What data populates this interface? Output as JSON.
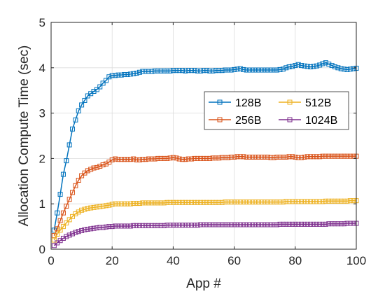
{
  "chart_data": {
    "type": "line",
    "title": "",
    "xlabel": "App #",
    "ylabel": "Allocation Compute Time (sec)",
    "xlim": [
      0,
      100
    ],
    "ylim": [
      0,
      5
    ],
    "x_ticks": [
      0,
      20,
      40,
      60,
      80,
      100
    ],
    "y_ticks": [
      0,
      1,
      2,
      3,
      4,
      5
    ],
    "grid": true,
    "legend_placement": "right",
    "legend_columns": 2,
    "marker": "square",
    "series": [
      {
        "name": "128B",
        "color": "#0072BD",
        "x": [
          1,
          2,
          3,
          4,
          5,
          6,
          7,
          8,
          9,
          10,
          11,
          12,
          13,
          14,
          15,
          16,
          17,
          18,
          19,
          20,
          21,
          22,
          23,
          24,
          25,
          26,
          27,
          28,
          29,
          30,
          31,
          32,
          33,
          34,
          35,
          36,
          37,
          38,
          39,
          40,
          41,
          42,
          43,
          44,
          45,
          46,
          47,
          48,
          49,
          50,
          51,
          52,
          53,
          54,
          55,
          56,
          57,
          58,
          59,
          60,
          61,
          62,
          63,
          64,
          65,
          66,
          67,
          68,
          69,
          70,
          71,
          72,
          73,
          74,
          75,
          76,
          77,
          78,
          79,
          80,
          81,
          82,
          83,
          84,
          85,
          86,
          87,
          88,
          89,
          90,
          91,
          92,
          93,
          94,
          95,
          96,
          97,
          98,
          99,
          100
        ],
        "values": [
          0.42,
          0.8,
          1.21,
          1.65,
          1.95,
          2.3,
          2.65,
          2.85,
          3.05,
          3.18,
          3.28,
          3.38,
          3.43,
          3.48,
          3.52,
          3.58,
          3.66,
          3.72,
          3.8,
          3.83,
          3.83,
          3.84,
          3.84,
          3.85,
          3.85,
          3.86,
          3.87,
          3.88,
          3.9,
          3.92,
          3.92,
          3.92,
          3.92,
          3.93,
          3.93,
          3.93,
          3.93,
          3.93,
          3.93,
          3.94,
          3.94,
          3.94,
          3.94,
          3.93,
          3.94,
          3.94,
          3.94,
          3.93,
          3.93,
          3.94,
          3.94,
          3.93,
          3.93,
          3.94,
          3.94,
          3.94,
          3.95,
          3.95,
          3.95,
          3.96,
          3.97,
          3.98,
          3.96,
          3.95,
          3.95,
          3.95,
          3.95,
          3.95,
          3.95,
          3.95,
          3.95,
          3.95,
          3.95,
          3.95,
          3.96,
          3.97,
          4.0,
          4.02,
          4.03,
          4.05,
          4.07,
          4.05,
          4.04,
          4.03,
          4.02,
          4.03,
          4.04,
          4.06,
          4.09,
          4.11,
          4.08,
          4.05,
          4.02,
          4.0,
          3.98,
          3.97,
          3.96,
          3.97,
          3.98,
          3.99
        ]
      },
      {
        "name": "256B",
        "color": "#D95319",
        "x": [
          1,
          2,
          3,
          4,
          5,
          6,
          7,
          8,
          9,
          10,
          11,
          12,
          13,
          14,
          15,
          16,
          17,
          18,
          19,
          20,
          21,
          22,
          23,
          24,
          25,
          26,
          27,
          28,
          29,
          30,
          31,
          32,
          33,
          34,
          35,
          36,
          37,
          38,
          39,
          40,
          41,
          42,
          43,
          44,
          45,
          46,
          47,
          48,
          49,
          50,
          51,
          52,
          53,
          54,
          55,
          56,
          57,
          58,
          59,
          60,
          61,
          62,
          63,
          64,
          65,
          66,
          67,
          68,
          69,
          70,
          71,
          72,
          73,
          74,
          75,
          76,
          77,
          78,
          79,
          80,
          81,
          82,
          83,
          84,
          85,
          86,
          87,
          88,
          89,
          90,
          91,
          92,
          93,
          94,
          95,
          96,
          97,
          98,
          99,
          100
        ],
        "values": [
          0.3,
          0.45,
          0.63,
          0.8,
          0.95,
          1.1,
          1.25,
          1.4,
          1.52,
          1.62,
          1.68,
          1.73,
          1.76,
          1.79,
          1.8,
          1.83,
          1.86,
          1.88,
          1.92,
          1.97,
          1.99,
          1.98,
          1.98,
          1.98,
          1.98,
          1.98,
          1.99,
          1.97,
          1.97,
          1.98,
          1.98,
          1.99,
          1.99,
          1.99,
          2.0,
          2.0,
          2.0,
          2.0,
          2.01,
          2.02,
          2.01,
          1.99,
          1.98,
          1.98,
          1.99,
          1.99,
          2.0,
          2.0,
          2.0,
          2.0,
          2.0,
          2.0,
          2.01,
          2.01,
          2.01,
          2.02,
          2.02,
          2.02,
          2.03,
          2.03,
          2.04,
          2.04,
          2.04,
          2.03,
          2.03,
          2.03,
          2.03,
          2.03,
          2.03,
          2.03,
          2.03,
          2.02,
          2.02,
          2.03,
          2.03,
          2.03,
          2.03,
          2.04,
          2.04,
          2.03,
          2.02,
          2.02,
          2.03,
          2.04,
          2.04,
          2.04,
          2.04,
          2.04,
          2.05,
          2.05,
          2.05,
          2.05,
          2.05,
          2.05,
          2.05,
          2.05,
          2.05,
          2.05,
          2.05,
          2.05
        ]
      },
      {
        "name": "512B",
        "color": "#EDB120",
        "x": [
          1,
          2,
          3,
          4,
          5,
          6,
          7,
          8,
          9,
          10,
          11,
          12,
          13,
          14,
          15,
          16,
          17,
          18,
          19,
          20,
          21,
          22,
          23,
          24,
          25,
          26,
          27,
          28,
          29,
          30,
          31,
          32,
          33,
          34,
          35,
          36,
          37,
          38,
          39,
          40,
          41,
          42,
          43,
          44,
          45,
          46,
          47,
          48,
          49,
          50,
          51,
          52,
          53,
          54,
          55,
          56,
          57,
          58,
          59,
          60,
          61,
          62,
          63,
          64,
          65,
          66,
          67,
          68,
          69,
          70,
          71,
          72,
          73,
          74,
          75,
          76,
          77,
          78,
          79,
          80,
          81,
          82,
          83,
          84,
          85,
          86,
          87,
          88,
          89,
          90,
          91,
          92,
          93,
          94,
          95,
          96,
          97,
          98,
          99,
          100
        ],
        "values": [
          0.2,
          0.33,
          0.42,
          0.5,
          0.58,
          0.65,
          0.72,
          0.78,
          0.82,
          0.86,
          0.88,
          0.9,
          0.91,
          0.92,
          0.93,
          0.94,
          0.95,
          0.96,
          0.97,
          0.99,
          1.0,
          1.0,
          1.0,
          1.0,
          1.0,
          1.0,
          1.01,
          1.01,
          1.01,
          1.02,
          1.02,
          1.02,
          1.02,
          1.02,
          1.02,
          1.02,
          1.02,
          1.03,
          1.03,
          1.03,
          1.03,
          1.03,
          1.03,
          1.03,
          1.03,
          1.03,
          1.03,
          1.03,
          1.03,
          1.03,
          1.03,
          1.03,
          1.03,
          1.03,
          1.03,
          1.03,
          1.04,
          1.04,
          1.04,
          1.04,
          1.04,
          1.04,
          1.04,
          1.04,
          1.04,
          1.04,
          1.04,
          1.04,
          1.04,
          1.04,
          1.04,
          1.04,
          1.04,
          1.04,
          1.04,
          1.04,
          1.05,
          1.05,
          1.05,
          1.05,
          1.05,
          1.05,
          1.05,
          1.05,
          1.05,
          1.05,
          1.05,
          1.05,
          1.05,
          1.06,
          1.06,
          1.06,
          1.06,
          1.06,
          1.06,
          1.06,
          1.06,
          1.07,
          1.07,
          1.07
        ]
      },
      {
        "name": "1024B",
        "color": "#7E2F8E",
        "x": [
          1,
          2,
          3,
          4,
          5,
          6,
          7,
          8,
          9,
          10,
          11,
          12,
          13,
          14,
          15,
          16,
          17,
          18,
          19,
          20,
          21,
          22,
          23,
          24,
          25,
          26,
          27,
          28,
          29,
          30,
          31,
          32,
          33,
          34,
          35,
          36,
          37,
          38,
          39,
          40,
          41,
          42,
          43,
          44,
          45,
          46,
          47,
          48,
          49,
          50,
          51,
          52,
          53,
          54,
          55,
          56,
          57,
          58,
          59,
          60,
          61,
          62,
          63,
          64,
          65,
          66,
          67,
          68,
          69,
          70,
          71,
          72,
          73,
          74,
          75,
          76,
          77,
          78,
          79,
          80,
          81,
          82,
          83,
          84,
          85,
          86,
          87,
          88,
          89,
          90,
          91,
          92,
          93,
          94,
          95,
          96,
          97,
          98,
          99,
          100
        ],
        "values": [
          0.08,
          0.14,
          0.19,
          0.24,
          0.28,
          0.31,
          0.34,
          0.37,
          0.39,
          0.41,
          0.43,
          0.44,
          0.45,
          0.46,
          0.47,
          0.48,
          0.48,
          0.49,
          0.5,
          0.5,
          0.51,
          0.51,
          0.51,
          0.51,
          0.51,
          0.51,
          0.52,
          0.52,
          0.52,
          0.52,
          0.52,
          0.52,
          0.52,
          0.52,
          0.52,
          0.52,
          0.52,
          0.53,
          0.53,
          0.53,
          0.53,
          0.53,
          0.53,
          0.53,
          0.53,
          0.53,
          0.53,
          0.53,
          0.54,
          0.54,
          0.54,
          0.54,
          0.54,
          0.54,
          0.54,
          0.54,
          0.54,
          0.54,
          0.54,
          0.54,
          0.54,
          0.54,
          0.54,
          0.54,
          0.54,
          0.54,
          0.54,
          0.54,
          0.54,
          0.54,
          0.54,
          0.54,
          0.54,
          0.54,
          0.55,
          0.55,
          0.55,
          0.55,
          0.55,
          0.55,
          0.55,
          0.55,
          0.55,
          0.55,
          0.55,
          0.55,
          0.55,
          0.55,
          0.55,
          0.55,
          0.56,
          0.56,
          0.56,
          0.56,
          0.56,
          0.56,
          0.57,
          0.57,
          0.57,
          0.57
        ]
      }
    ]
  }
}
